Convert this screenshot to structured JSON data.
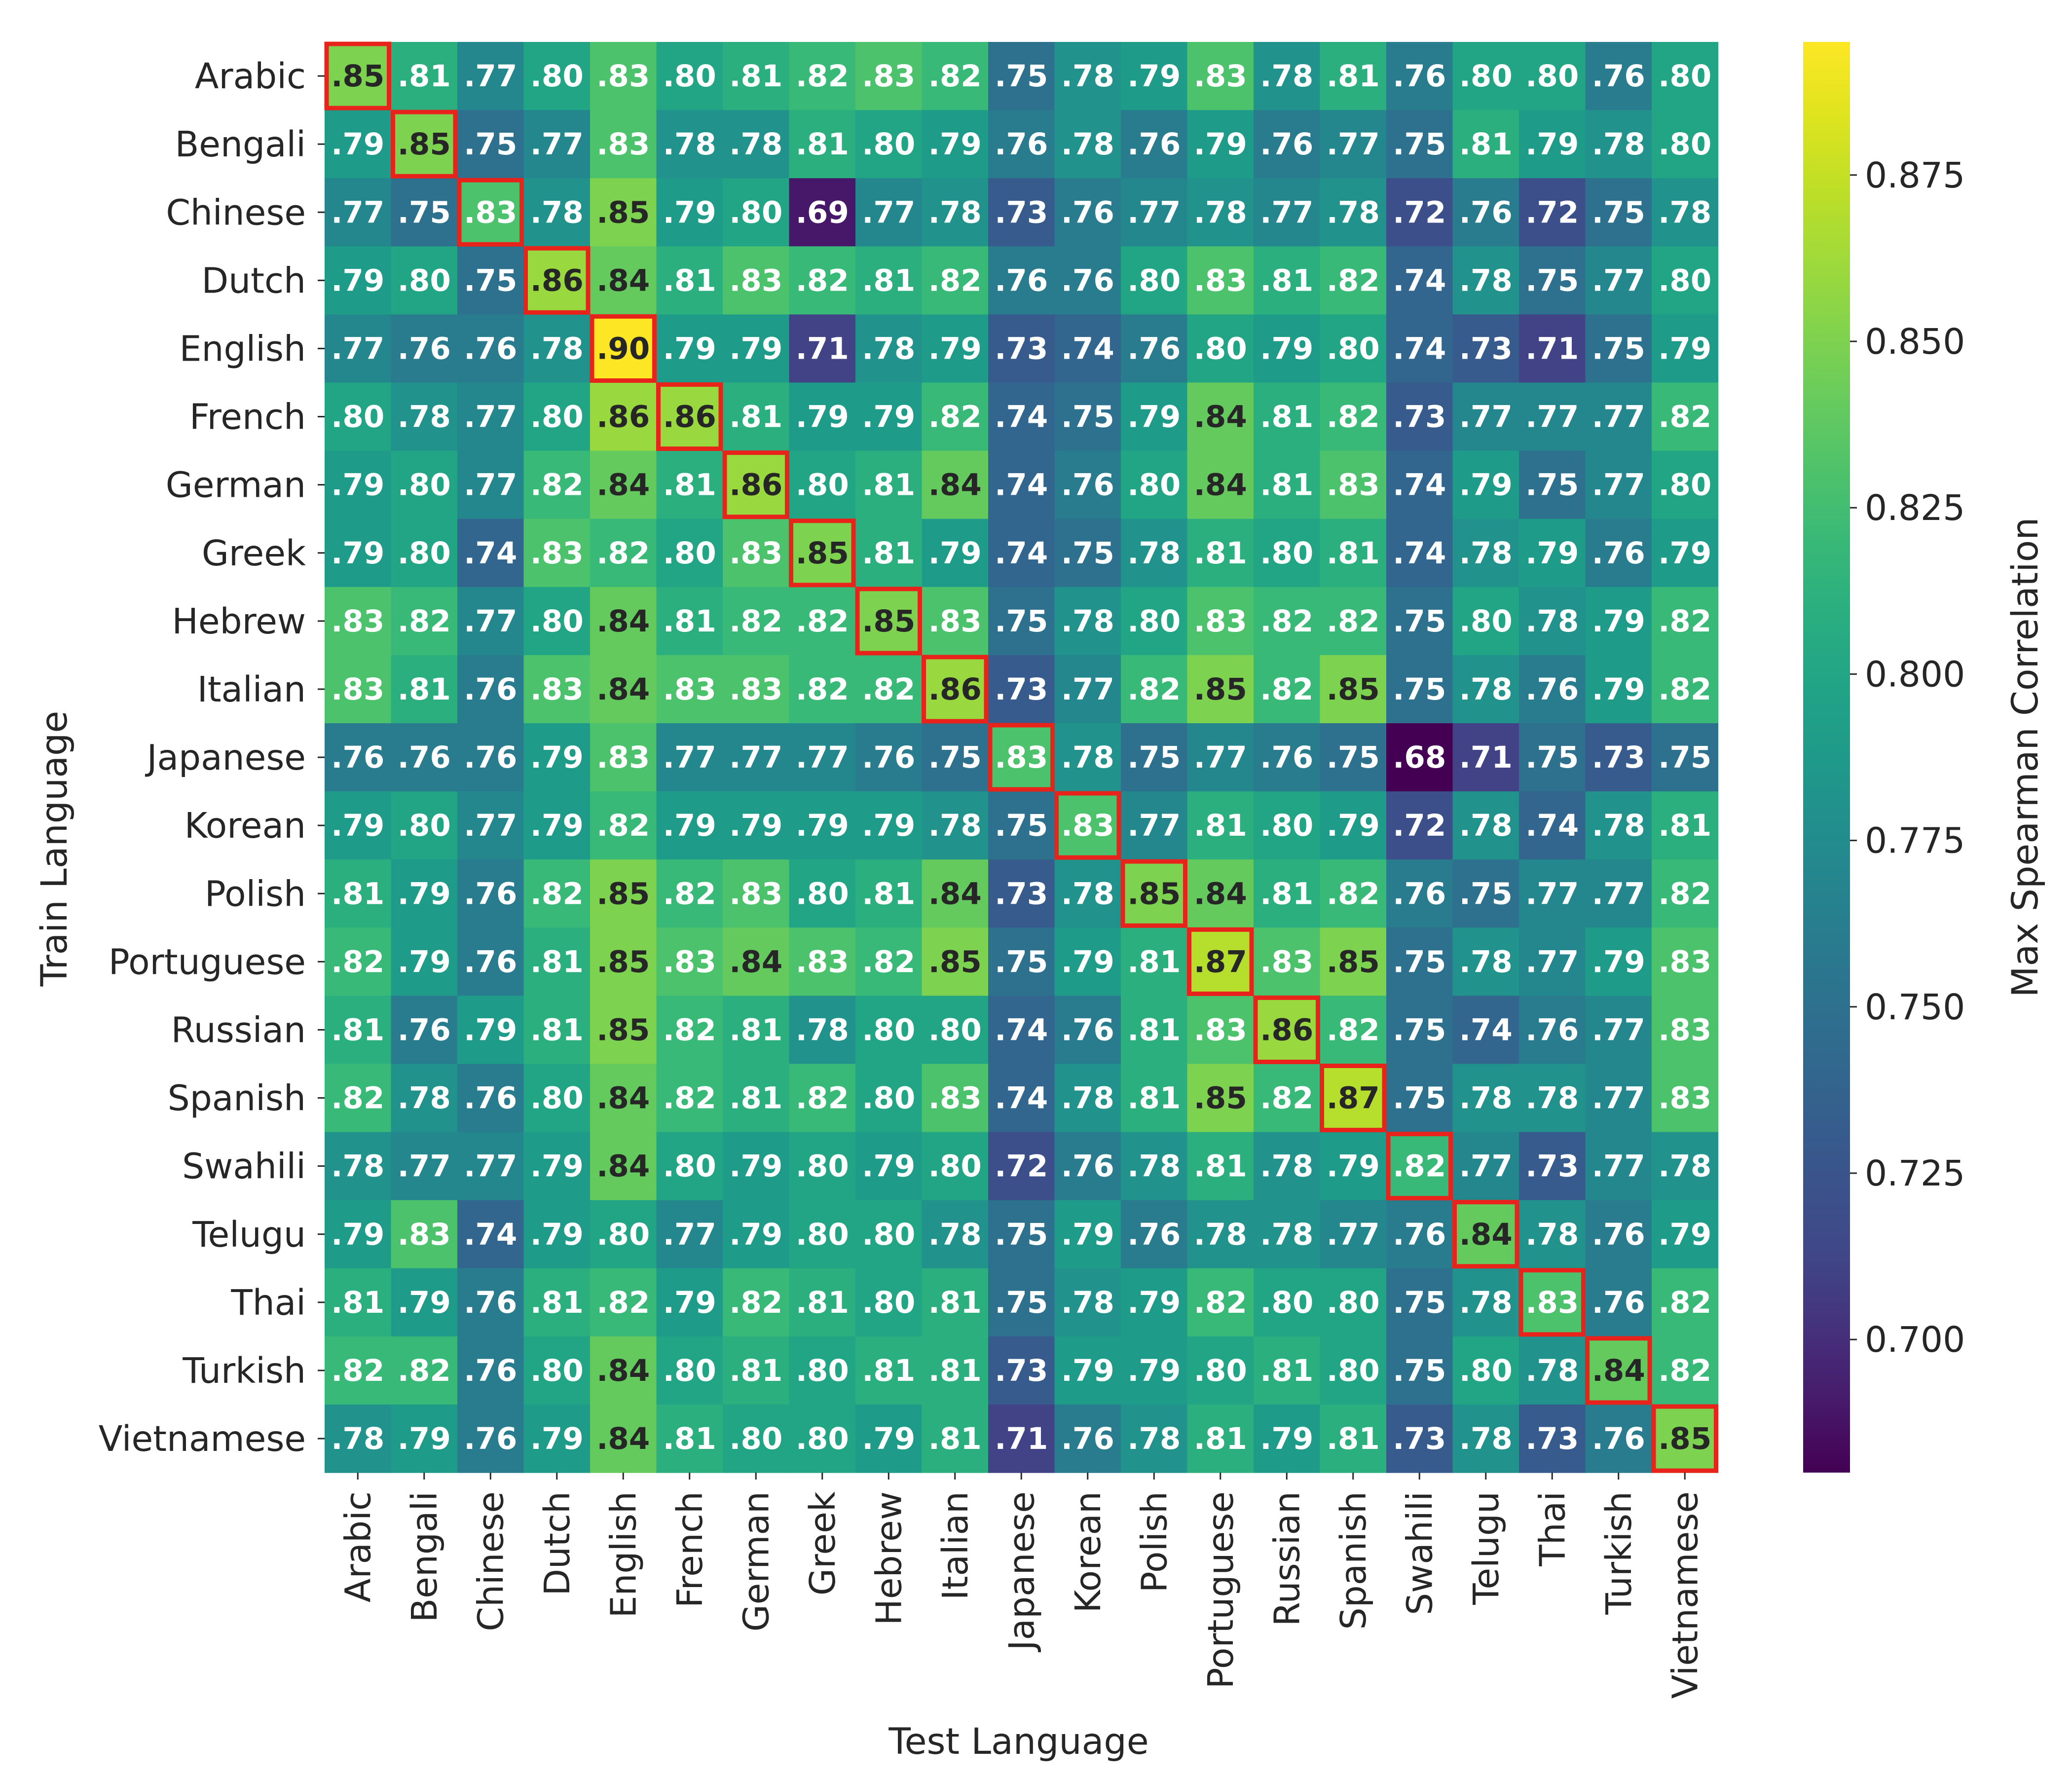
{
  "chart_data": {
    "type": "heatmap",
    "title": "",
    "xlabel": "Test Language",
    "ylabel": "Train Language",
    "colorbar_label": "Max Spearman Correlation",
    "colormap": "viridis",
    "vmin": 0.68,
    "vmax": 0.895,
    "colorbar_ticks": [
      "0.700",
      "0.725",
      "0.750",
      "0.775",
      "0.800",
      "0.825",
      "0.850",
      "0.875"
    ],
    "highlight_color": "#e8231c",
    "highlight": "diagonal",
    "train_languages": [
      "Arabic",
      "Bengali",
      "Chinese",
      "Dutch",
      "English",
      "French",
      "German",
      "Greek",
      "Hebrew",
      "Italian",
      "Japanese",
      "Korean",
      "Polish",
      "Portuguese",
      "Russian",
      "Spanish",
      "Swahili",
      "Telugu",
      "Thai",
      "Turkish",
      "Vietnamese"
    ],
    "test_languages": [
      "Arabic",
      "Bengali",
      "Chinese",
      "Dutch",
      "English",
      "French",
      "German",
      "Greek",
      "Hebrew",
      "Italian",
      "Japanese",
      "Korean",
      "Polish",
      "Portuguese",
      "Russian",
      "Spanish",
      "Swahili",
      "Telugu",
      "Thai",
      "Turkish",
      "Vietnamese"
    ],
    "values": [
      [
        0.85,
        0.81,
        0.77,
        0.8,
        0.83,
        0.8,
        0.81,
        0.82,
        0.83,
        0.82,
        0.75,
        0.78,
        0.79,
        0.83,
        0.78,
        0.81,
        0.76,
        0.8,
        0.8,
        0.76,
        0.8
      ],
      [
        0.79,
        0.85,
        0.75,
        0.77,
        0.83,
        0.78,
        0.78,
        0.81,
        0.8,
        0.79,
        0.76,
        0.78,
        0.76,
        0.79,
        0.76,
        0.77,
        0.75,
        0.81,
        0.79,
        0.78,
        0.8
      ],
      [
        0.77,
        0.75,
        0.83,
        0.78,
        0.85,
        0.79,
        0.8,
        0.69,
        0.77,
        0.78,
        0.73,
        0.76,
        0.77,
        0.78,
        0.77,
        0.78,
        0.72,
        0.76,
        0.72,
        0.75,
        0.78
      ],
      [
        0.79,
        0.8,
        0.75,
        0.86,
        0.84,
        0.81,
        0.83,
        0.82,
        0.81,
        0.82,
        0.76,
        0.76,
        0.8,
        0.83,
        0.81,
        0.82,
        0.74,
        0.78,
        0.75,
        0.77,
        0.8
      ],
      [
        0.77,
        0.76,
        0.76,
        0.78,
        0.9,
        0.79,
        0.79,
        0.71,
        0.78,
        0.79,
        0.73,
        0.74,
        0.76,
        0.8,
        0.79,
        0.8,
        0.74,
        0.73,
        0.71,
        0.75,
        0.79
      ],
      [
        0.8,
        0.78,
        0.77,
        0.8,
        0.86,
        0.86,
        0.81,
        0.79,
        0.79,
        0.82,
        0.74,
        0.75,
        0.79,
        0.84,
        0.81,
        0.82,
        0.73,
        0.77,
        0.77,
        0.77,
        0.82
      ],
      [
        0.79,
        0.8,
        0.77,
        0.82,
        0.84,
        0.81,
        0.86,
        0.8,
        0.81,
        0.84,
        0.74,
        0.76,
        0.8,
        0.84,
        0.81,
        0.83,
        0.74,
        0.79,
        0.75,
        0.77,
        0.8
      ],
      [
        0.79,
        0.8,
        0.74,
        0.83,
        0.82,
        0.8,
        0.83,
        0.85,
        0.81,
        0.79,
        0.74,
        0.75,
        0.78,
        0.81,
        0.8,
        0.81,
        0.74,
        0.78,
        0.79,
        0.76,
        0.79
      ],
      [
        0.83,
        0.82,
        0.77,
        0.8,
        0.84,
        0.81,
        0.82,
        0.82,
        0.85,
        0.83,
        0.75,
        0.78,
        0.8,
        0.83,
        0.82,
        0.82,
        0.75,
        0.8,
        0.78,
        0.79,
        0.82
      ],
      [
        0.83,
        0.81,
        0.76,
        0.83,
        0.84,
        0.83,
        0.83,
        0.82,
        0.82,
        0.86,
        0.73,
        0.77,
        0.82,
        0.85,
        0.82,
        0.85,
        0.75,
        0.78,
        0.76,
        0.79,
        0.82
      ],
      [
        0.76,
        0.76,
        0.76,
        0.79,
        0.83,
        0.77,
        0.77,
        0.77,
        0.76,
        0.75,
        0.83,
        0.78,
        0.75,
        0.77,
        0.76,
        0.75,
        0.68,
        0.71,
        0.75,
        0.73,
        0.75
      ],
      [
        0.79,
        0.8,
        0.77,
        0.79,
        0.82,
        0.79,
        0.79,
        0.79,
        0.79,
        0.78,
        0.75,
        0.83,
        0.77,
        0.81,
        0.8,
        0.79,
        0.72,
        0.78,
        0.74,
        0.78,
        0.81
      ],
      [
        0.81,
        0.79,
        0.76,
        0.82,
        0.85,
        0.82,
        0.83,
        0.8,
        0.81,
        0.84,
        0.73,
        0.78,
        0.85,
        0.84,
        0.81,
        0.82,
        0.76,
        0.75,
        0.77,
        0.77,
        0.82
      ],
      [
        0.82,
        0.79,
        0.76,
        0.81,
        0.85,
        0.83,
        0.84,
        0.83,
        0.82,
        0.85,
        0.75,
        0.79,
        0.81,
        0.87,
        0.83,
        0.85,
        0.75,
        0.78,
        0.77,
        0.79,
        0.83
      ],
      [
        0.81,
        0.76,
        0.79,
        0.81,
        0.85,
        0.82,
        0.81,
        0.78,
        0.8,
        0.8,
        0.74,
        0.76,
        0.81,
        0.83,
        0.86,
        0.82,
        0.75,
        0.74,
        0.76,
        0.77,
        0.83
      ],
      [
        0.82,
        0.78,
        0.76,
        0.8,
        0.84,
        0.82,
        0.81,
        0.82,
        0.8,
        0.83,
        0.74,
        0.78,
        0.81,
        0.85,
        0.82,
        0.87,
        0.75,
        0.78,
        0.78,
        0.77,
        0.83
      ],
      [
        0.78,
        0.77,
        0.77,
        0.79,
        0.84,
        0.8,
        0.79,
        0.8,
        0.79,
        0.8,
        0.72,
        0.76,
        0.78,
        0.81,
        0.78,
        0.79,
        0.82,
        0.77,
        0.73,
        0.77,
        0.78
      ],
      [
        0.79,
        0.83,
        0.74,
        0.79,
        0.8,
        0.77,
        0.79,
        0.8,
        0.8,
        0.78,
        0.75,
        0.79,
        0.76,
        0.78,
        0.78,
        0.77,
        0.76,
        0.84,
        0.78,
        0.76,
        0.79
      ],
      [
        0.81,
        0.79,
        0.76,
        0.81,
        0.82,
        0.79,
        0.82,
        0.81,
        0.8,
        0.81,
        0.75,
        0.78,
        0.79,
        0.82,
        0.8,
        0.8,
        0.75,
        0.78,
        0.83,
        0.76,
        0.82
      ],
      [
        0.82,
        0.82,
        0.76,
        0.8,
        0.84,
        0.8,
        0.81,
        0.8,
        0.81,
        0.81,
        0.73,
        0.79,
        0.79,
        0.8,
        0.81,
        0.8,
        0.75,
        0.8,
        0.78,
        0.84,
        0.82
      ],
      [
        0.78,
        0.79,
        0.76,
        0.79,
        0.84,
        0.81,
        0.8,
        0.8,
        0.79,
        0.81,
        0.71,
        0.76,
        0.78,
        0.81,
        0.79,
        0.81,
        0.73,
        0.78,
        0.73,
        0.76,
        0.85
      ]
    ]
  }
}
